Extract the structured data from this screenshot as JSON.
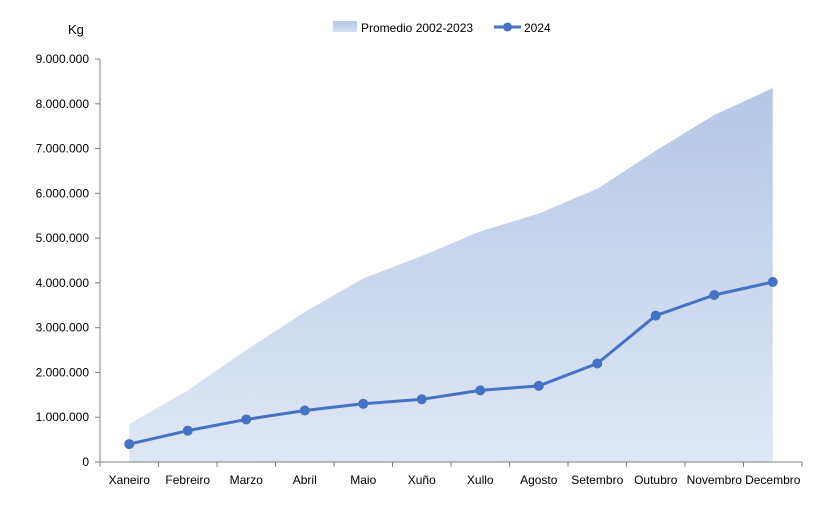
{
  "chart_data": {
    "type": "area",
    "ylabel": "Kg",
    "categories": [
      "Xaneiro",
      "Febreiro",
      "Marzo",
      "Abril",
      "Maio",
      "Xuño",
      "Xullo",
      "Agosto",
      "Setembro",
      "Outubro",
      "Novembro",
      "Decembro"
    ],
    "ylim": [
      0,
      9000000
    ],
    "yticks": [
      "0",
      "1.000.000",
      "2.000.000",
      "3.000.000",
      "4.000.000",
      "5.000.000",
      "6.000.000",
      "7.000.000",
      "8.000.000",
      "9.000.000"
    ],
    "legend_position": "top",
    "grid": false,
    "series": [
      {
        "name": "Promedio 2002-2023",
        "kind": "area",
        "color": "#b4c7e7",
        "values": [
          850000,
          1600000,
          2500000,
          3350000,
          4100000,
          4600000,
          5150000,
          5550000,
          6100000,
          6950000,
          7750000,
          8350000
        ]
      },
      {
        "name": "2024",
        "kind": "line",
        "color": "#4472c4",
        "values": [
          400000,
          700000,
          950000,
          1150000,
          1300000,
          1400000,
          1600000,
          1700000,
          2200000,
          3270000,
          3730000,
          4020000
        ]
      }
    ]
  }
}
